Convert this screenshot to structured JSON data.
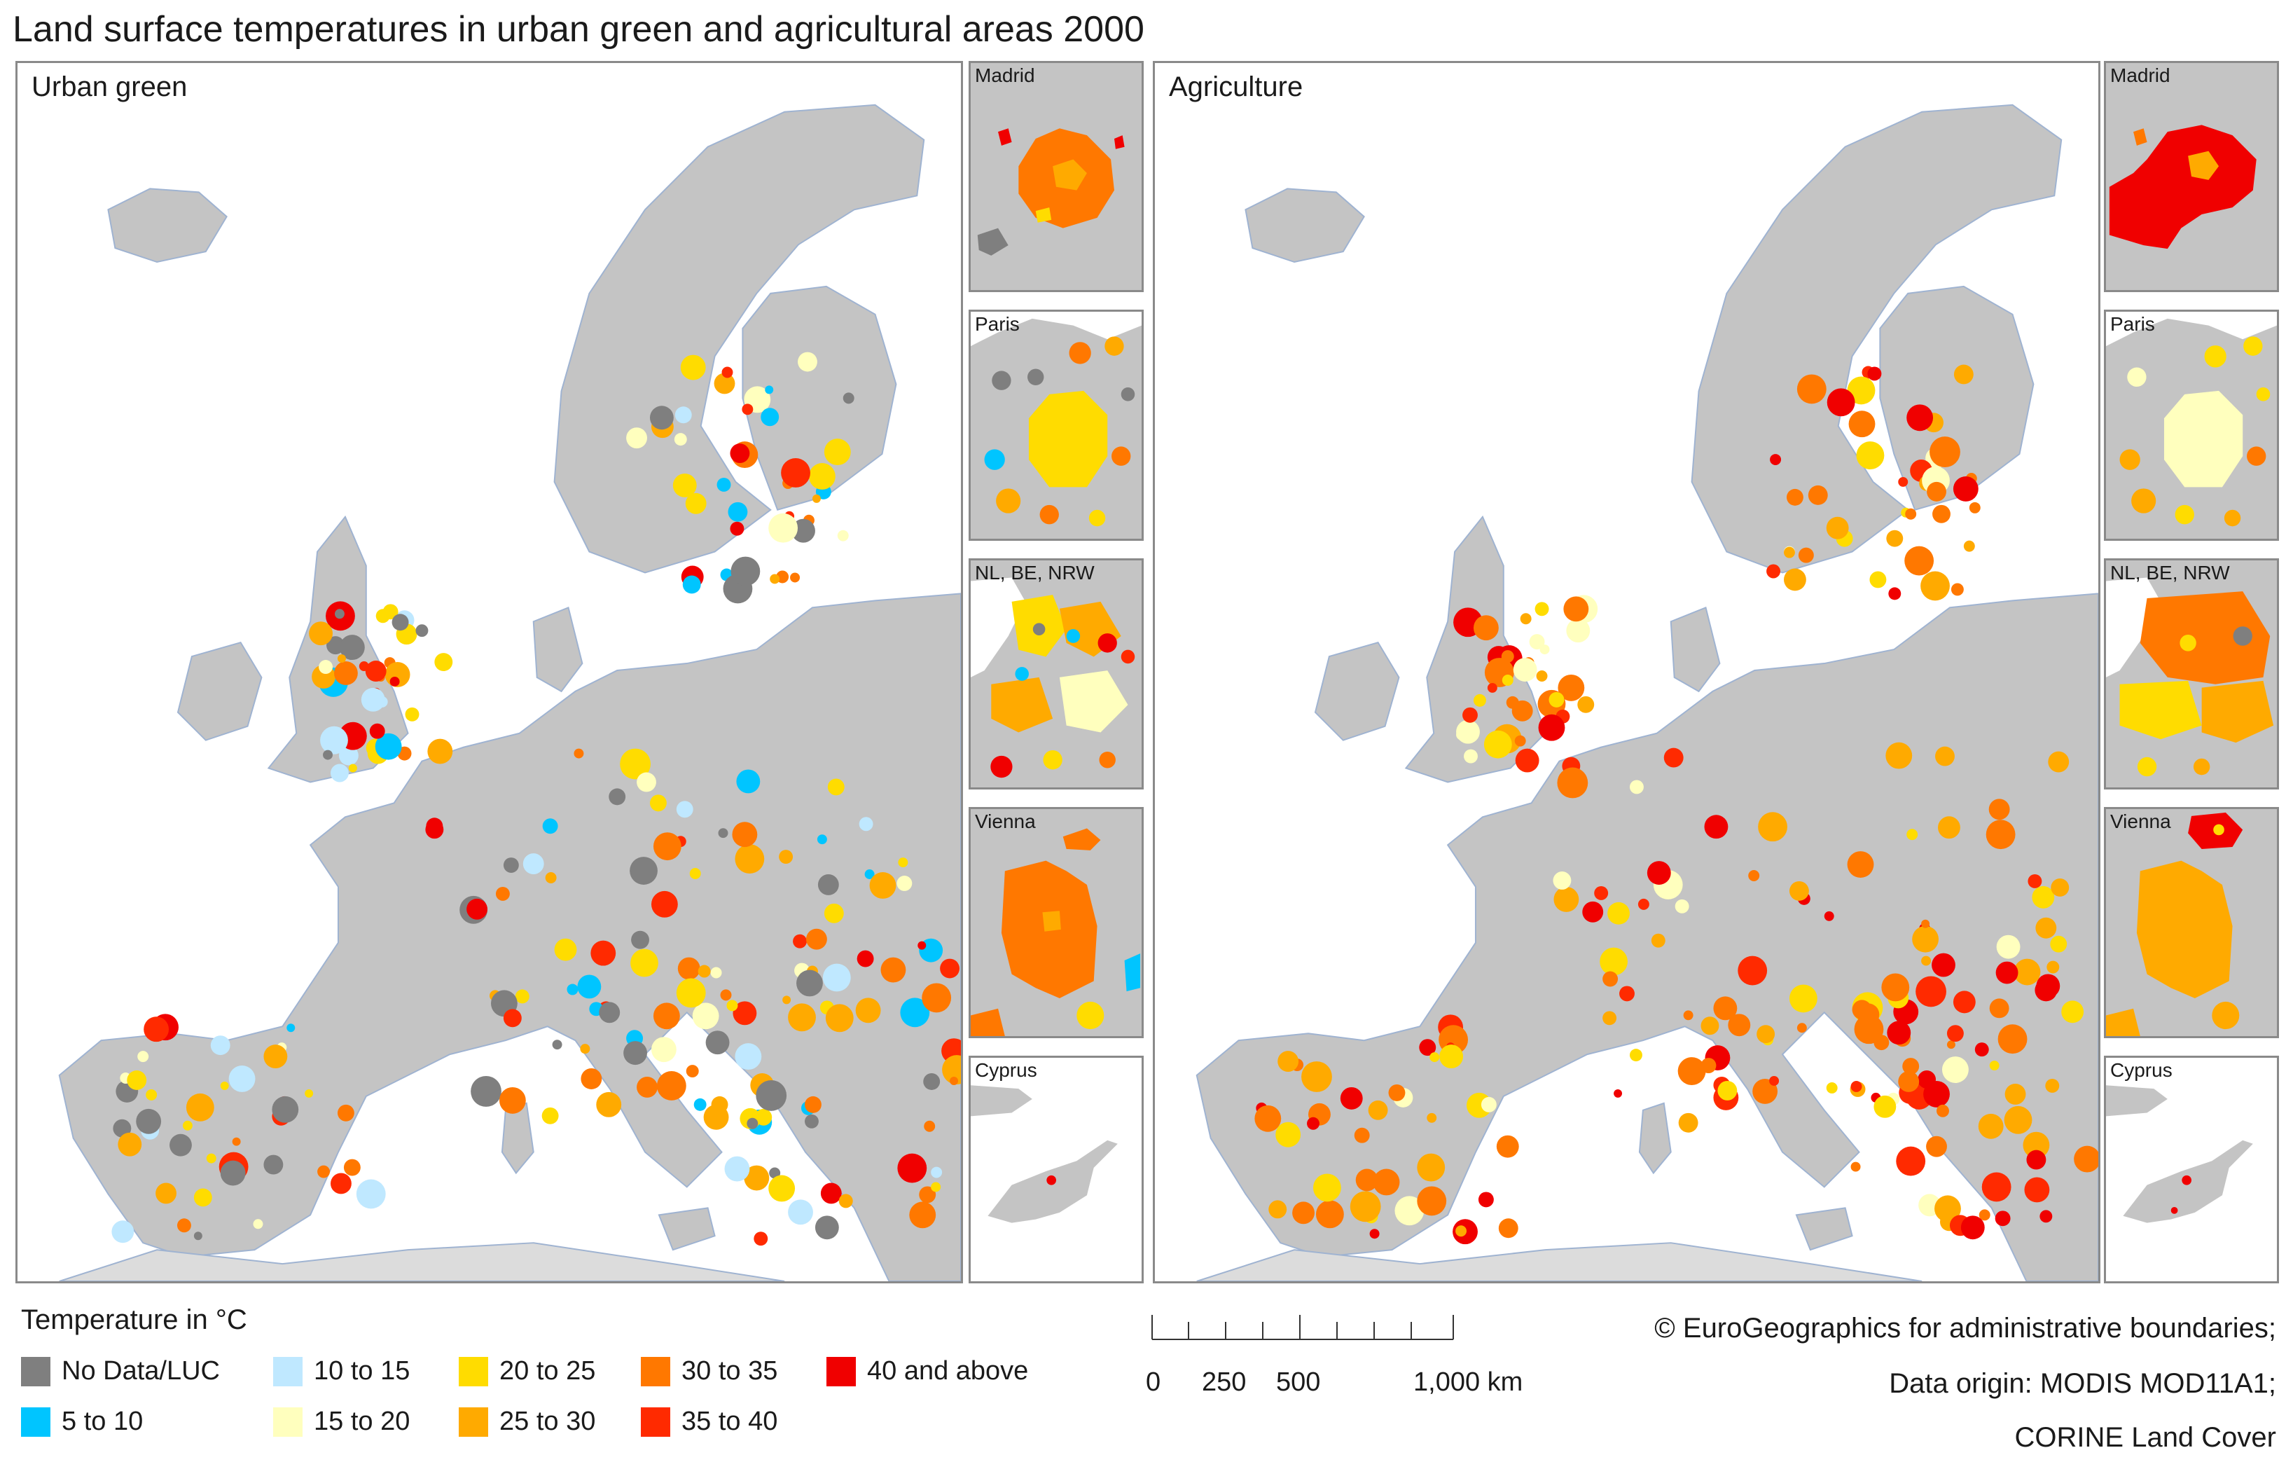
{
  "title": "Land surface temperatures in urban green and agricultural areas 2000",
  "panels": {
    "left": {
      "label": "Urban green"
    },
    "right": {
      "label": "Agriculture"
    }
  },
  "insets": {
    "left": [
      {
        "label": "Madrid"
      },
      {
        "label": "Paris"
      },
      {
        "label": "NL, BE, NRW"
      },
      {
        "label": "Vienna"
      },
      {
        "label": "Cyprus"
      }
    ],
    "right": [
      {
        "label": "Madrid"
      },
      {
        "label": "Paris"
      },
      {
        "label": "NL, BE, NRW"
      },
      {
        "label": "Vienna"
      },
      {
        "label": "Cyprus"
      }
    ]
  },
  "legend": {
    "title": "Temperature in °C",
    "items": [
      {
        "label": "No Data/LUC",
        "color": "#7f7f7f"
      },
      {
        "label": "5 to 10",
        "color": "#00c5ff"
      },
      {
        "label": "10 to 15",
        "color": "#bfe8ff"
      },
      {
        "label": "15 to 20",
        "color": "#ffffbe"
      },
      {
        "label": "20 to 25",
        "color": "#ffdc00"
      },
      {
        "label": "25 to 30",
        "color": "#ffaa00"
      },
      {
        "label": "30 to 35",
        "color": "#ff7800"
      },
      {
        "label": "35 to 40",
        "color": "#ff2a00"
      },
      {
        "label": "40 and above",
        "color": "#f00000"
      }
    ]
  },
  "scale_bar": {
    "labels": [
      "0",
      "250",
      "500",
      "1,000 km"
    ]
  },
  "credits": [
    "© EuroGeographics for administrative boundaries;",
    "Data origin: MODIS MOD11A1;",
    "CORINE Land Cover"
  ],
  "colors": {
    "land": "#c4c4c4",
    "outside_land": "#dcdcdc",
    "sea": "#ffffff",
    "border": "#8a8a8a",
    "coast": "#9fb3d1"
  }
}
